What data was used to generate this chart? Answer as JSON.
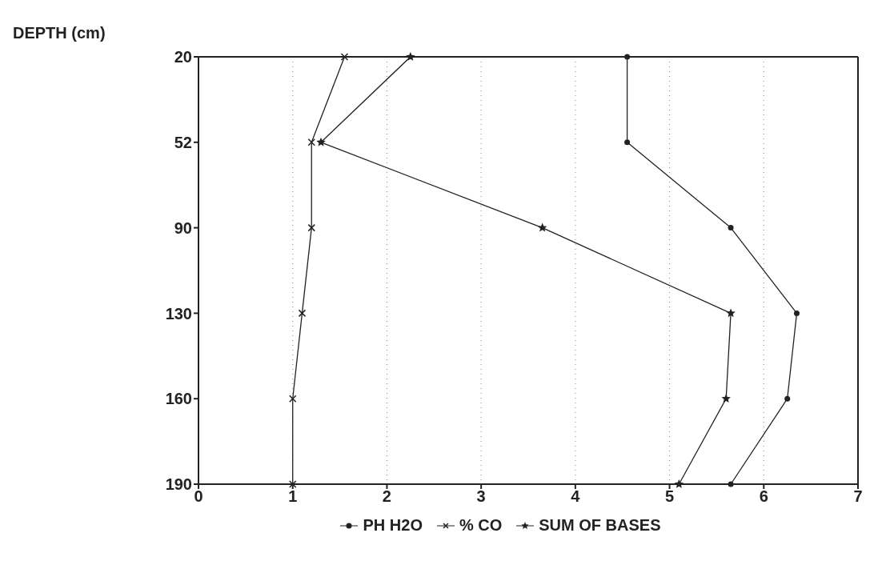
{
  "chart_data": {
    "type": "line",
    "orientation": "horizontal",
    "ylabel": "DEPTH (cm)",
    "categories": [
      "20",
      "52",
      "90",
      "130",
      "160",
      "190"
    ],
    "xlim": [
      0,
      7
    ],
    "xticks": [
      0,
      1,
      2,
      3,
      4,
      5,
      6,
      7
    ],
    "grid": "x",
    "legend": "bottom",
    "line_style": "solid",
    "series": [
      {
        "name": "PH H2O",
        "color": "#222222",
        "marker": "circle",
        "values": [
          4.55,
          4.55,
          5.65,
          6.35,
          6.25,
          5.65
        ]
      },
      {
        "name": "% CO",
        "color": "#222222",
        "marker": "cross",
        "values": [
          1.55,
          1.2,
          1.2,
          1.1,
          1.0,
          1.0
        ]
      },
      {
        "name": "SUM OF BASES",
        "color": "#222222",
        "marker": "star",
        "values": [
          2.25,
          1.3,
          3.65,
          5.65,
          5.6,
          5.1
        ]
      }
    ]
  }
}
